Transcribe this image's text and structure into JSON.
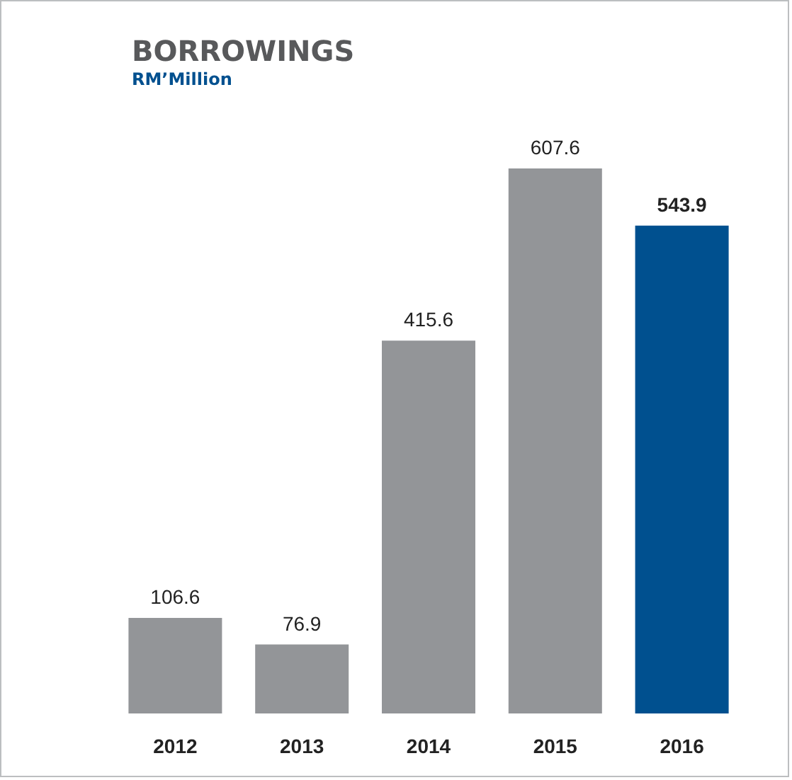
{
  "chart_data": {
    "type": "bar",
    "title": "BORROWINGS",
    "subtitle": "RM’Million",
    "categories": [
      "2012",
      "2013",
      "2014",
      "2015",
      "2016"
    ],
    "values": [
      106.6,
      76.9,
      415.6,
      607.6,
      543.9
    ],
    "colors": [
      "#939598",
      "#939598",
      "#939598",
      "#939598",
      "#00508f"
    ],
    "data_labels": true
  }
}
